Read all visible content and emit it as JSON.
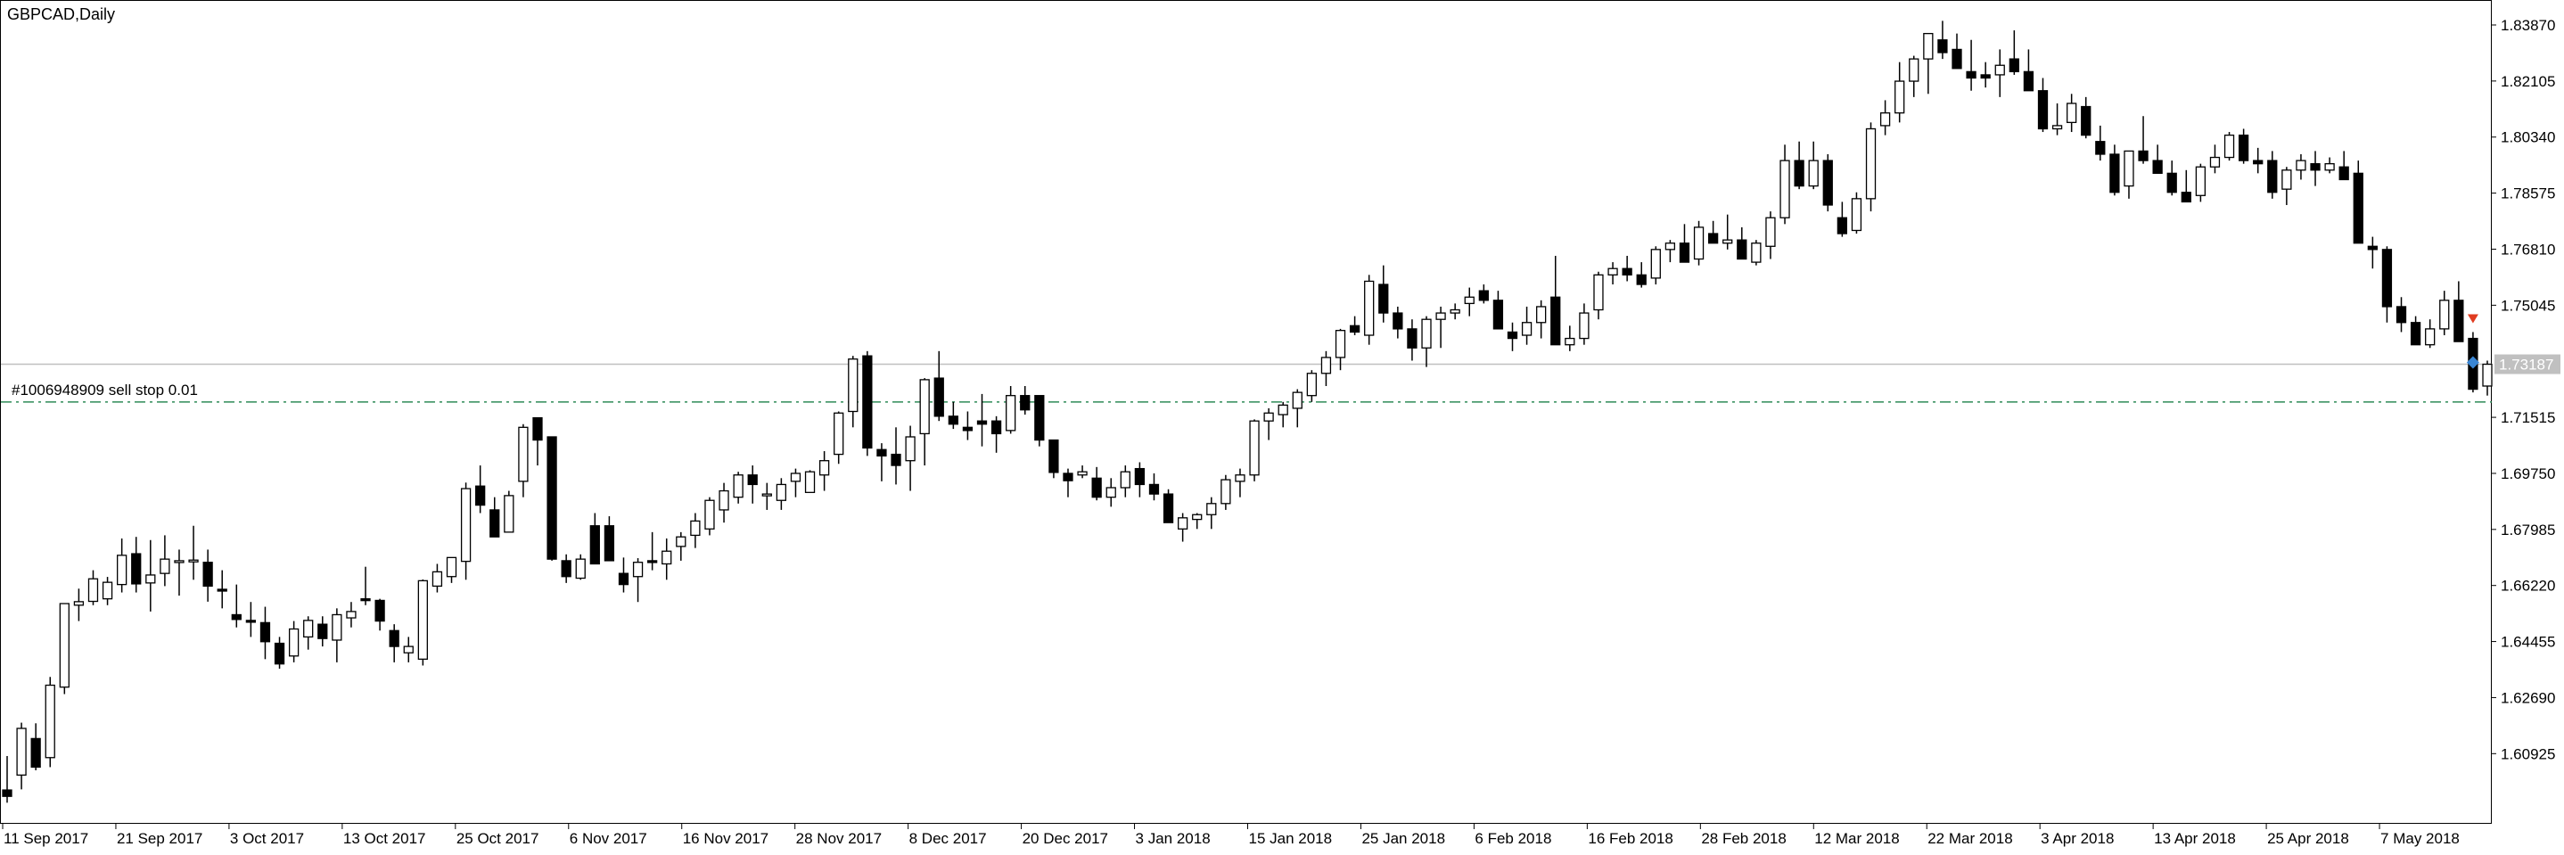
{
  "chart_data": {
    "type": "candlestick",
    "symbol_title": "GBPCAD,Daily",
    "order_label": "#1006948909 sell stop 0.01",
    "current_price_label": "1.73187",
    "current_price": 1.73187,
    "order_price": 1.72,
    "ylim": [
      1.588,
      1.846
    ],
    "y_ticks": [
      "1.83870",
      "1.82105",
      "1.80340",
      "1.78575",
      "1.76810",
      "1.75045",
      "1.71515",
      "1.69750",
      "1.67985",
      "1.66220",
      "1.64455",
      "1.62690",
      "1.60925"
    ],
    "x_labels": [
      "11 Sep 2017",
      "21 Sep 2017",
      "3 Oct 2017",
      "13 Oct 2017",
      "25 Oct 2017",
      "6 Nov 2017",
      "16 Nov 2017",
      "28 Nov 2017",
      "8 Dec 2017",
      "20 Dec 2017",
      "3 Jan 2018",
      "15 Jan 2018",
      "25 Jan 2018",
      "6 Feb 2018",
      "16 Feb 2018",
      "28 Feb 2018",
      "12 Mar 2018",
      "22 Mar 2018",
      "3 Apr 2018",
      "13 Apr 2018",
      "25 Apr 2018",
      "7 May 2018"
    ],
    "bars": [
      [
        1.5978,
        1.6085,
        1.5938,
        1.5958
      ],
      [
        1.6025,
        1.619,
        1.598,
        1.6172
      ],
      [
        1.614,
        1.6188,
        1.604,
        1.605
      ],
      [
        1.608,
        1.6334,
        1.605,
        1.6308
      ],
      [
        1.6302,
        1.6566,
        1.628,
        1.6565
      ],
      [
        1.656,
        1.6612,
        1.651,
        1.6571
      ],
      [
        1.6572,
        1.667,
        1.656,
        1.6643
      ],
      [
        1.658,
        1.6649,
        1.656,
        1.6632
      ],
      [
        1.6625,
        1.677,
        1.66,
        1.6717
      ],
      [
        1.6722,
        1.6775,
        1.66,
        1.6627
      ],
      [
        1.663,
        1.6765,
        1.654,
        1.6655
      ],
      [
        1.666,
        1.678,
        1.662,
        1.6705
      ],
      [
        1.67,
        1.6735,
        1.659,
        1.67
      ],
      [
        1.67,
        1.681,
        1.664,
        1.6702
      ],
      [
        1.6695,
        1.6735,
        1.6571,
        1.662
      ],
      [
        1.661,
        1.667,
        1.655,
        1.6605
      ],
      [
        1.653,
        1.6625,
        1.649,
        1.6515
      ],
      [
        1.6512,
        1.657,
        1.646,
        1.6507
      ],
      [
        1.6505,
        1.6555,
        1.639,
        1.6445
      ],
      [
        1.644,
        1.646,
        1.636,
        1.6375
      ],
      [
        1.64,
        1.651,
        1.638,
        1.6485
      ],
      [
        1.646,
        1.6525,
        1.642,
        1.6512
      ],
      [
        1.65,
        1.6525,
        1.643,
        1.6455
      ],
      [
        1.645,
        1.655,
        1.638,
        1.653
      ],
      [
        1.652,
        1.657,
        1.649,
        1.654
      ],
      [
        1.658,
        1.6681,
        1.656,
        1.6576
      ],
      [
        1.6575,
        1.658,
        1.648,
        1.651
      ],
      [
        1.648,
        1.65,
        1.638,
        1.643
      ],
      [
        1.641,
        1.646,
        1.638,
        1.643
      ],
      [
        1.639,
        1.6641,
        1.637,
        1.6637
      ],
      [
        1.662,
        1.669,
        1.66,
        1.6665
      ],
      [
        1.665,
        1.67,
        1.663,
        1.671
      ],
      [
        1.6698,
        1.6946,
        1.664,
        1.6927
      ],
      [
        1.6935,
        1.7,
        1.685,
        1.6875
      ],
      [
        1.686,
        1.69,
        1.678,
        1.6775
      ],
      [
        1.679,
        1.692,
        1.679,
        1.6905
      ],
      [
        1.695,
        1.713,
        1.69,
        1.712
      ],
      [
        1.715,
        1.714,
        1.7,
        1.708
      ],
      [
        1.709,
        1.709,
        1.67,
        1.6705
      ],
      [
        1.67,
        1.672,
        1.663,
        1.665
      ],
      [
        1.6645,
        1.672,
        1.664,
        1.6705
      ],
      [
        1.681,
        1.685,
        1.669,
        1.669
      ],
      [
        1.681,
        1.684,
        1.67,
        1.67
      ],
      [
        1.666,
        1.671,
        1.66,
        1.6625
      ],
      [
        1.665,
        1.6708,
        1.657,
        1.6695
      ],
      [
        1.67,
        1.679,
        1.667,
        1.6698
      ],
      [
        1.669,
        1.677,
        1.664,
        1.673
      ],
      [
        1.6745,
        1.679,
        1.67,
        1.6775
      ],
      [
        1.678,
        1.685,
        1.674,
        1.6825
      ],
      [
        1.68,
        1.69,
        1.678,
        1.689
      ],
      [
        1.686,
        1.6945,
        1.682,
        1.692
      ],
      [
        1.69,
        1.698,
        1.688,
        1.697
      ],
      [
        1.697,
        1.7,
        1.688,
        1.694
      ],
      [
        1.691,
        1.6945,
        1.686,
        1.691
      ],
      [
        1.689,
        1.696,
        1.686,
        1.694
      ],
      [
        1.695,
        1.699,
        1.69,
        1.6975
      ],
      [
        1.6915,
        1.6985,
        1.6915,
        1.698
      ],
      [
        1.697,
        1.7045,
        1.692,
        1.7015
      ],
      [
        1.7035,
        1.717,
        1.7005,
        1.7165
      ],
      [
        1.717,
        1.7345,
        1.712,
        1.7335
      ],
      [
        1.7345,
        1.736,
        1.703,
        1.7055
      ],
      [
        1.705,
        1.707,
        1.695,
        1.703
      ],
      [
        1.7035,
        1.712,
        1.694,
        1.7
      ],
      [
        1.7015,
        1.7125,
        1.692,
        1.709
      ],
      [
        1.71,
        1.7275,
        1.7,
        1.727
      ],
      [
        1.7275,
        1.736,
        1.714,
        1.7155
      ],
      [
        1.7155,
        1.72,
        1.7115,
        1.713
      ],
      [
        1.712,
        1.717,
        1.708,
        1.711
      ],
      [
        1.714,
        1.7225,
        1.706,
        1.713
      ],
      [
        1.714,
        1.7155,
        1.704,
        1.71
      ],
      [
        1.711,
        1.725,
        1.71,
        1.722
      ],
      [
        1.722,
        1.725,
        1.716,
        1.7175
      ],
      [
        1.722,
        1.722,
        1.706,
        1.708
      ],
      [
        1.708,
        1.708,
        1.696,
        1.6978
      ],
      [
        1.6975,
        1.699,
        1.69,
        1.6952
      ],
      [
        1.697,
        1.7,
        1.696,
        1.698
      ],
      [
        1.696,
        1.6995,
        1.689,
        1.69
      ],
      [
        1.69,
        1.696,
        1.687,
        1.693
      ],
      [
        1.693,
        1.7,
        1.69,
        1.698
      ],
      [
        1.699,
        1.701,
        1.69,
        1.694
      ],
      [
        1.694,
        1.6975,
        1.689,
        1.691
      ],
      [
        1.691,
        1.6925,
        1.682,
        1.682
      ],
      [
        1.68,
        1.685,
        1.676,
        1.6835
      ],
      [
        1.683,
        1.685,
        1.68,
        1.6845
      ],
      [
        1.6845,
        1.69,
        1.68,
        1.688
      ],
      [
        1.688,
        1.697,
        1.686,
        1.6955
      ],
      [
        1.695,
        1.699,
        1.69,
        1.697
      ],
      [
        1.697,
        1.7145,
        1.695,
        1.714
      ],
      [
        1.714,
        1.718,
        1.708,
        1.7165
      ],
      [
        1.716,
        1.72,
        1.712,
        1.719
      ],
      [
        1.718,
        1.724,
        1.712,
        1.723
      ],
      [
        1.722,
        1.73,
        1.72,
        1.729
      ],
      [
        1.729,
        1.736,
        1.725,
        1.734
      ],
      [
        1.734,
        1.743,
        1.73,
        1.7425
      ],
      [
        1.744,
        1.747,
        1.741,
        1.742
      ],
      [
        1.741,
        1.76,
        1.738,
        1.758
      ],
      [
        1.757,
        1.763,
        1.745,
        1.748
      ],
      [
        1.748,
        1.75,
        1.74,
        1.743
      ],
      [
        1.743,
        1.746,
        1.733,
        1.737
      ],
      [
        1.737,
        1.747,
        1.731,
        1.746
      ],
      [
        1.746,
        1.75,
        1.737,
        1.748
      ],
      [
        1.748,
        1.751,
        1.746,
        1.749
      ],
      [
        1.751,
        1.756,
        1.747,
        1.753
      ],
      [
        1.755,
        1.757,
        1.751,
        1.752
      ],
      [
        1.752,
        1.755,
        1.744,
        1.743
      ],
      [
        1.742,
        1.745,
        1.736,
        1.74
      ],
      [
        1.741,
        1.75,
        1.738,
        1.745
      ],
      [
        1.745,
        1.752,
        1.74,
        1.75
      ],
      [
        1.753,
        1.766,
        1.738,
        1.738
      ],
      [
        1.738,
        1.744,
        1.736,
        1.74
      ],
      [
        1.74,
        1.751,
        1.738,
        1.748
      ],
      [
        1.749,
        1.761,
        1.746,
        1.76
      ],
      [
        1.76,
        1.764,
        1.757,
        1.762
      ],
      [
        1.762,
        1.766,
        1.758,
        1.76
      ],
      [
        1.76,
        1.764,
        1.756,
        1.757
      ],
      [
        1.759,
        1.769,
        1.757,
        1.768
      ],
      [
        1.768,
        1.771,
        1.764,
        1.77
      ],
      [
        1.77,
        1.776,
        1.764,
        1.764
      ],
      [
        1.765,
        1.777,
        1.763,
        1.775
      ],
      [
        1.773,
        1.777,
        1.77,
        1.77
      ],
      [
        1.77,
        1.779,
        1.768,
        1.771
      ],
      [
        1.771,
        1.775,
        1.765,
        1.765
      ],
      [
        1.764,
        1.771,
        1.763,
        1.77
      ],
      [
        1.769,
        1.78,
        1.765,
        1.778
      ],
      [
        1.778,
        1.801,
        1.776,
        1.796
      ],
      [
        1.796,
        1.802,
        1.787,
        1.788
      ],
      [
        1.788,
        1.802,
        1.787,
        1.796
      ],
      [
        1.796,
        1.798,
        1.78,
        1.782
      ],
      [
        1.778,
        1.783,
        1.772,
        1.773
      ],
      [
        1.774,
        1.786,
        1.773,
        1.784
      ],
      [
        1.784,
        1.808,
        1.78,
        1.806
      ],
      [
        1.807,
        1.815,
        1.804,
        1.811
      ],
      [
        1.811,
        1.827,
        1.808,
        1.821
      ],
      [
        1.821,
        1.829,
        1.816,
        1.828
      ],
      [
        1.828,
        1.834,
        1.817,
        1.836
      ],
      [
        1.834,
        1.84,
        1.828,
        1.83
      ],
      [
        1.831,
        1.836,
        1.826,
        1.825
      ],
      [
        1.824,
        1.834,
        1.818,
        1.822
      ],
      [
        1.823,
        1.827,
        1.819,
        1.822
      ],
      [
        1.823,
        1.831,
        1.816,
        1.826
      ],
      [
        1.828,
        1.837,
        1.823,
        1.824
      ],
      [
        1.824,
        1.831,
        1.818,
        1.818
      ],
      [
        1.818,
        1.822,
        1.805,
        1.806
      ],
      [
        1.806,
        1.814,
        1.804,
        1.807
      ],
      [
        1.808,
        1.817,
        1.805,
        1.814
      ],
      [
        1.813,
        1.816,
        1.803,
        1.804
      ],
      [
        1.802,
        1.807,
        1.796,
        1.798
      ],
      [
        1.798,
        1.801,
        1.785,
        1.786
      ],
      [
        1.788,
        1.796,
        1.784,
        1.799
      ],
      [
        1.799,
        1.81,
        1.795,
        1.796
      ],
      [
        1.796,
        1.801,
        1.792,
        1.792
      ],
      [
        1.792,
        1.796,
        1.785,
        1.786
      ],
      [
        1.786,
        1.793,
        1.783,
        1.783
      ],
      [
        1.785,
        1.795,
        1.783,
        1.794
      ],
      [
        1.794,
        1.801,
        1.792,
        1.797
      ],
      [
        1.797,
        1.805,
        1.796,
        1.804
      ],
      [
        1.804,
        1.806,
        1.795,
        1.796
      ],
      [
        1.796,
        1.8,
        1.792,
        1.795
      ],
      [
        1.796,
        1.799,
        1.784,
        1.786
      ],
      [
        1.787,
        1.794,
        1.782,
        1.793
      ],
      [
        1.793,
        1.798,
        1.79,
        1.796
      ],
      [
        1.795,
        1.799,
        1.788,
        1.793
      ],
      [
        1.793,
        1.797,
        1.792,
        1.795
      ],
      [
        1.794,
        1.799,
        1.79,
        1.79
      ],
      [
        1.792,
        1.796,
        1.788,
        1.77
      ],
      [
        1.769,
        1.772,
        1.762,
        1.768
      ],
      [
        1.768,
        1.769,
        1.745,
        1.75
      ],
      [
        1.75,
        1.753,
        1.742,
        1.745
      ],
      [
        1.745,
        1.747,
        1.738,
        1.738
      ],
      [
        1.738,
        1.746,
        1.737,
        1.743
      ],
      [
        1.743,
        1.755,
        1.741,
        1.752
      ],
      [
        1.752,
        1.758,
        1.748,
        1.739
      ],
      [
        1.74,
        1.742,
        1.723,
        1.724
      ],
      [
        1.725,
        1.733,
        1.722,
        1.73187
      ]
    ]
  }
}
